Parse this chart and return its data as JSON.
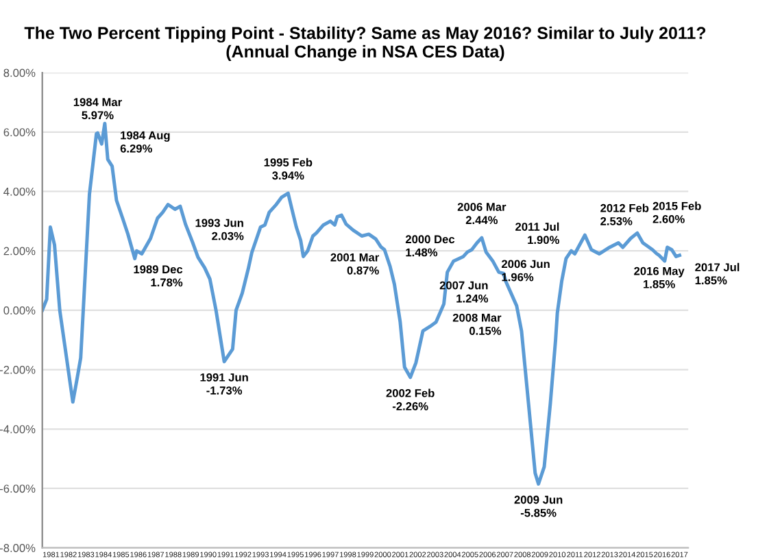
{
  "chart_data": {
    "type": "line",
    "title": "The Two Percent Tipping Point - Stability? Same as May 2016? Similar to July 2011?\n(Annual Change in NSA CES Data)",
    "series": [
      {
        "color": "#5b9bd5",
        "x": [
          1981.0,
          1981.25,
          1981.46,
          1981.7,
          1982.0,
          1982.75,
          1983.0,
          1983.2,
          1983.45,
          1983.7,
          1984.1,
          1984.17,
          1984.4,
          1984.58,
          1984.75,
          1985.0,
          1985.25,
          1985.6,
          1985.9,
          1986.3,
          1986.4,
          1986.7,
          1987.2,
          1987.6,
          1987.9,
          1988.2,
          1988.6,
          1988.9,
          1989.2,
          1989.6,
          1989.92,
          1990.3,
          1990.6,
          1990.95,
          1991.42,
          1991.9,
          1992.1,
          1992.45,
          1992.8,
          1993.0,
          1993.5,
          1993.75,
          1994.0,
          1994.4,
          1994.7,
          1995.08,
          1995.3,
          1995.55,
          1995.8,
          1995.95,
          1996.2,
          1996.5,
          1996.7,
          1997.1,
          1997.5,
          1997.75,
          1997.9,
          1998.14,
          1998.4,
          1998.8,
          1999.3,
          1999.7,
          2000.1,
          2000.4,
          2000.6,
          2000.92,
          2001.17,
          2001.5,
          2001.75,
          2002.08,
          2002.4,
          2002.8,
          2003.2,
          2003.55,
          2004.0,
          2004.2,
          2004.55,
          2005.1,
          2005.35,
          2005.6,
          2005.9,
          2006.17,
          2006.42,
          2006.8,
          2007.15,
          2007.42,
          2007.55,
          2008.17,
          2008.45,
          2008.85,
          2009.23,
          2009.42,
          2009.75,
          2010.1,
          2010.4,
          2010.5,
          2010.75,
          2011.0,
          2011.3,
          2011.5,
          2012.08,
          2012.45,
          2012.9,
          2013.5,
          2014.0,
          2014.25,
          2014.7,
          2015.08,
          2015.4,
          2015.95,
          2016.2,
          2016.33,
          2016.65,
          2016.8,
          2017.05,
          2017.3,
          2017.5
        ],
        "values": [
          0.0,
          0.37,
          2.8,
          2.2,
          0.0,
          -3.09,
          -2.28,
          -1.6,
          1.14,
          3.9,
          5.94,
          5.97,
          5.6,
          6.29,
          5.08,
          4.85,
          3.7,
          3.1,
          2.57,
          1.74,
          2.0,
          1.9,
          2.42,
          3.1,
          3.3,
          3.56,
          3.4,
          3.5,
          2.9,
          2.3,
          1.78,
          1.43,
          1.05,
          0.0,
          -1.73,
          -1.31,
          0.0,
          0.57,
          1.4,
          1.94,
          2.8,
          2.87,
          3.3,
          3.56,
          3.8,
          3.94,
          3.4,
          2.8,
          2.35,
          1.81,
          2.0,
          2.5,
          2.6,
          2.87,
          3.0,
          2.87,
          3.15,
          3.2,
          2.9,
          2.7,
          2.5,
          2.56,
          2.4,
          2.13,
          2.04,
          1.48,
          0.87,
          -0.4,
          -1.92,
          -2.26,
          -1.77,
          -0.7,
          -0.55,
          -0.4,
          0.21,
          1.28,
          1.65,
          1.8,
          1.96,
          2.04,
          2.27,
          2.44,
          1.96,
          1.66,
          1.28,
          1.24,
          0.97,
          0.15,
          -0.7,
          -3.14,
          -5.48,
          -5.85,
          -5.27,
          -3.14,
          -1.0,
          -0.1,
          0.97,
          1.74,
          2.0,
          1.9,
          2.53,
          2.04,
          1.9,
          2.12,
          2.27,
          2.12,
          2.42,
          2.6,
          2.27,
          2.04,
          1.9,
          1.85,
          1.66,
          2.12,
          2.04,
          1.81,
          1.85
        ]
      }
    ],
    "xlim": [
      1981,
      2018
    ],
    "xticks": [
      {
        "value": 1981.5,
        "label": "1981"
      },
      {
        "value": 1982.5,
        "label": "1982"
      },
      {
        "value": 1983.5,
        "label": "1983"
      },
      {
        "value": 1984.5,
        "label": "1984"
      },
      {
        "value": 1985.5,
        "label": "1985"
      },
      {
        "value": 1986.5,
        "label": "1986"
      },
      {
        "value": 1987.5,
        "label": "1987"
      },
      {
        "value": 1988.5,
        "label": "1988"
      },
      {
        "value": 1989.5,
        "label": "1989"
      },
      {
        "value": 1990.5,
        "label": "1990"
      },
      {
        "value": 1991.5,
        "label": "1991"
      },
      {
        "value": 1992.5,
        "label": "1992"
      },
      {
        "value": 1993.5,
        "label": "1993"
      },
      {
        "value": 1994.5,
        "label": "1994"
      },
      {
        "value": 1995.5,
        "label": "1995"
      },
      {
        "value": 1996.5,
        "label": "1996"
      },
      {
        "value": 1997.5,
        "label": "1997"
      },
      {
        "value": 1998.5,
        "label": "1998"
      },
      {
        "value": 1999.5,
        "label": "1999"
      },
      {
        "value": 2000.5,
        "label": "2000"
      },
      {
        "value": 2001.5,
        "label": "2001"
      },
      {
        "value": 2002.5,
        "label": "2002"
      },
      {
        "value": 2003.5,
        "label": "2003"
      },
      {
        "value": 2004.5,
        "label": "2004"
      },
      {
        "value": 2005.5,
        "label": "2005"
      },
      {
        "value": 2006.5,
        "label": "2006"
      },
      {
        "value": 2007.5,
        "label": "2007"
      },
      {
        "value": 2008.5,
        "label": "2008"
      },
      {
        "value": 2009.5,
        "label": "2009"
      },
      {
        "value": 2010.5,
        "label": "2010"
      },
      {
        "value": 2011.5,
        "label": "2011"
      },
      {
        "value": 2012.5,
        "label": "2012"
      },
      {
        "value": 2013.5,
        "label": "2013"
      },
      {
        "value": 2014.5,
        "label": "2014"
      },
      {
        "value": 2015.5,
        "label": "2015"
      },
      {
        "value": 2016.5,
        "label": "2016"
      },
      {
        "value": 2017.5,
        "label": "2017"
      }
    ],
    "ylim": [
      -8,
      8
    ],
    "yticks": [
      {
        "value": -8,
        "label": "-8.00%"
      },
      {
        "value": -6,
        "label": "-6.00%"
      },
      {
        "value": -4,
        "label": "-4.00%"
      },
      {
        "value": -2,
        "label": "-2.00%"
      },
      {
        "value": 0,
        "label": "0.00%"
      },
      {
        "value": 2,
        "label": "2.00%"
      },
      {
        "value": 4,
        "label": "4.00%"
      },
      {
        "value": 6,
        "label": "6.00%"
      },
      {
        "value": 8,
        "label": "8.00%"
      }
    ],
    "grid": "y",
    "annotations": [
      {
        "text": "1984 Mar\n5.97%",
        "x": 1984.17,
        "y": 5.97
      },
      {
        "text": "1984 Aug\n6.29%",
        "x": 1984.58,
        "y": 6.29
      },
      {
        "text": "1989 Dec\n1.78%",
        "x": 1989.92,
        "y": 1.78
      },
      {
        "text": "1991 Jun\n-1.73%",
        "x": 1991.42,
        "y": -1.73
      },
      {
        "text": "1993 Jun\n2.03%",
        "x": 1993.42,
        "y": 2.03
      },
      {
        "text": "1995 Feb\n3.94%",
        "x": 1995.08,
        "y": 3.94
      },
      {
        "text": "2000 Dec\n1.48%",
        "x": 2000.92,
        "y": 1.48
      },
      {
        "text": "2001 Mar\n0.87%",
        "x": 2001.17,
        "y": 0.87
      },
      {
        "text": "2002 Feb\n-2.26%",
        "x": 2002.08,
        "y": -2.26
      },
      {
        "text": "2006 Mar\n2.44%",
        "x": 2006.17,
        "y": 2.44
      },
      {
        "text": "2006 Jun\n1.96%",
        "x": 2006.42,
        "y": 1.96
      },
      {
        "text": "2007 Jun\n1.24%",
        "x": 2007.42,
        "y": 1.24
      },
      {
        "text": "2008 Mar\n0.15%",
        "x": 2008.17,
        "y": 0.15
      },
      {
        "text": "2009 Jun\n-5.85%",
        "x": 2009.42,
        "y": -5.85
      },
      {
        "text": "2011 Jul\n1.90%",
        "x": 2011.5,
        "y": 1.9
      },
      {
        "text": "2012 Feb\n2.53%",
        "x": 2012.08,
        "y": 2.53
      },
      {
        "text": "2015 Feb\n2.60%",
        "x": 2015.08,
        "y": 2.6
      },
      {
        "text": "2016 May\n1.85%",
        "x": 2016.33,
        "y": 1.85
      },
      {
        "text": "2017 Jul\n1.85%",
        "x": 2017.5,
        "y": 1.85
      }
    ]
  }
}
